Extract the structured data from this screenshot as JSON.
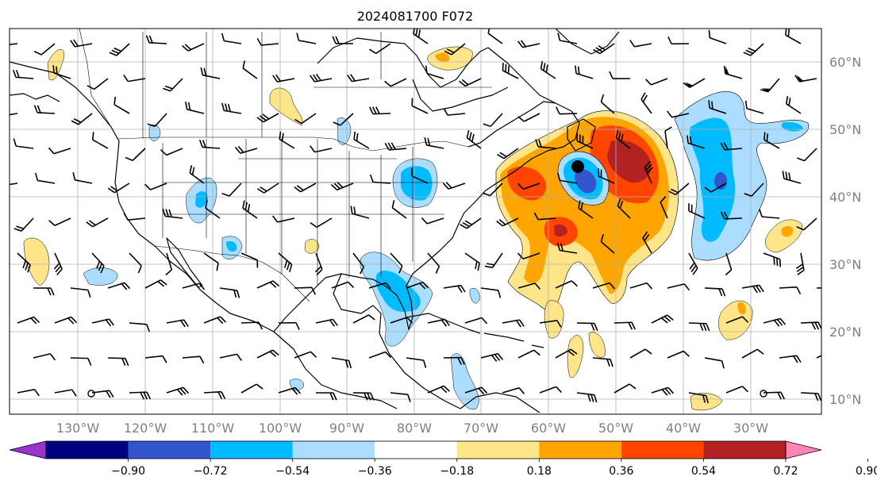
{
  "title": "2024081700 F072",
  "map": {
    "lon_labels": [
      "130°W",
      "120°W",
      "110°W",
      "100°W",
      "90°W",
      "80°W",
      "70°W",
      "60°W",
      "50°W",
      "40°W",
      "30°W"
    ],
    "lat_labels": [
      "60°N",
      "50°N",
      "40°N",
      "30°N",
      "20°N",
      "10°N"
    ],
    "grid": true,
    "coastline_color": "#000000",
    "grid_color": "#b0b0b0"
  },
  "colorbar": {
    "labels": [
      "−0.90",
      "−0.72",
      "−0.54",
      "−0.36",
      "−0.18",
      "0.18",
      "0.36",
      "0.54",
      "0.72",
      "0.90"
    ],
    "colors": [
      "#9933cc",
      "#000080",
      "#3355cc",
      "#00bbff",
      "#aaddff",
      "#ffffff",
      "#ffe58a",
      "#ffa500",
      "#ff4500",
      "#b22222",
      "#ff85b3"
    ],
    "extend": "both"
  },
  "fields": {
    "positive_colors": [
      "#ffe58a",
      "#ffa500",
      "#ff4500",
      "#b22222"
    ],
    "negative_colors": [
      "#aaddff",
      "#00bbff",
      "#3355cc"
    ]
  },
  "marker": {
    "symbol": "filled-circle",
    "color": "#000000"
  }
}
